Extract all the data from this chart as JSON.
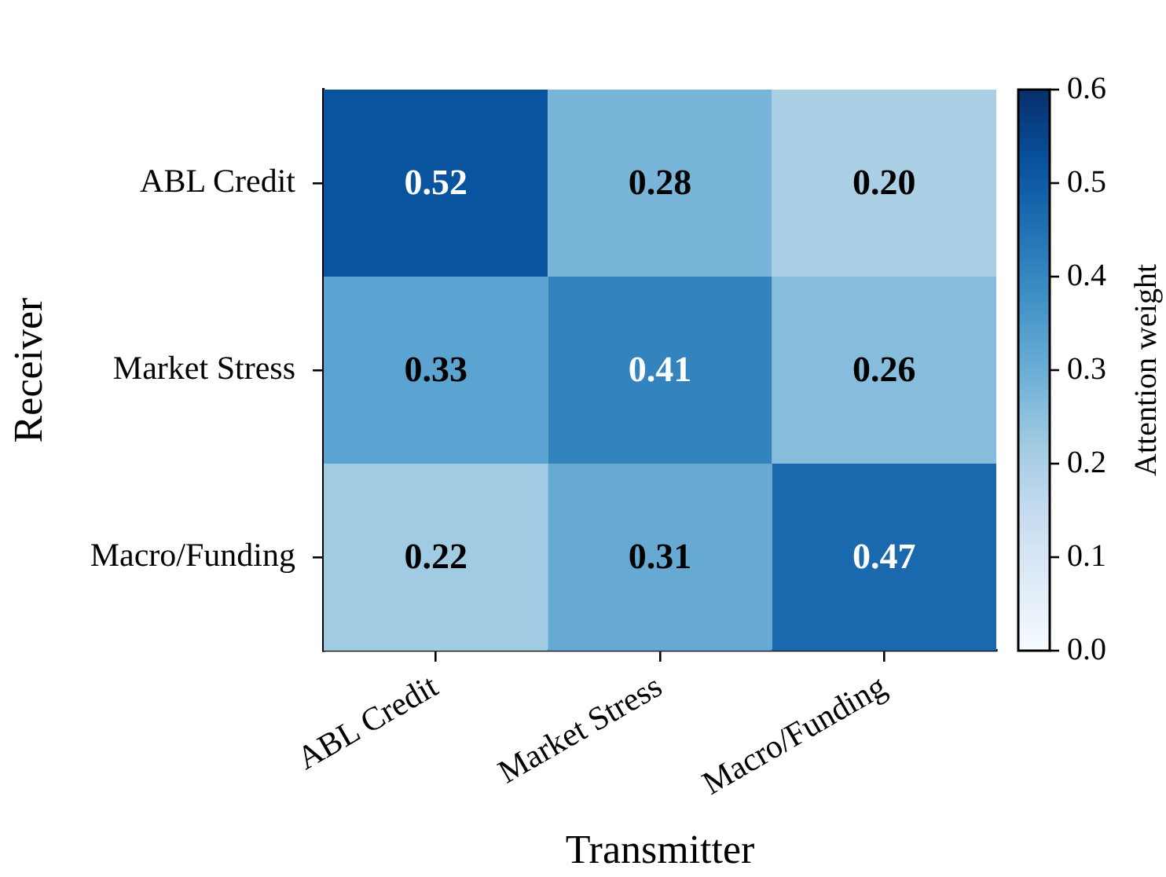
{
  "chart_data": {
    "type": "heatmap",
    "xlabel": "Transmitter",
    "ylabel": "Receiver",
    "clabel": "Attention weight",
    "categories": [
      "ABL Credit",
      "Market Stress",
      "Macro/Funding"
    ],
    "y_categories": [
      "ABL Credit",
      "Market Stress",
      "Macro/Funding"
    ],
    "cells": [
      [
        0.52,
        0.28,
        0.2
      ],
      [
        0.33,
        0.41,
        0.26
      ],
      [
        0.22,
        0.31,
        0.47
      ]
    ],
    "cell_labels": [
      [
        "0.52",
        "0.28",
        "0.20"
      ],
      [
        "0.33",
        "0.41",
        "0.26"
      ],
      [
        "0.22",
        "0.31",
        "0.47"
      ]
    ],
    "data_labels": true,
    "clim": [
      0,
      0.6
    ],
    "cticks": [
      {
        "value": 0,
        "label": "0.0"
      },
      0.1,
      0.2,
      0.3,
      0.4,
      0.5,
      0.6
    ]
  }
}
